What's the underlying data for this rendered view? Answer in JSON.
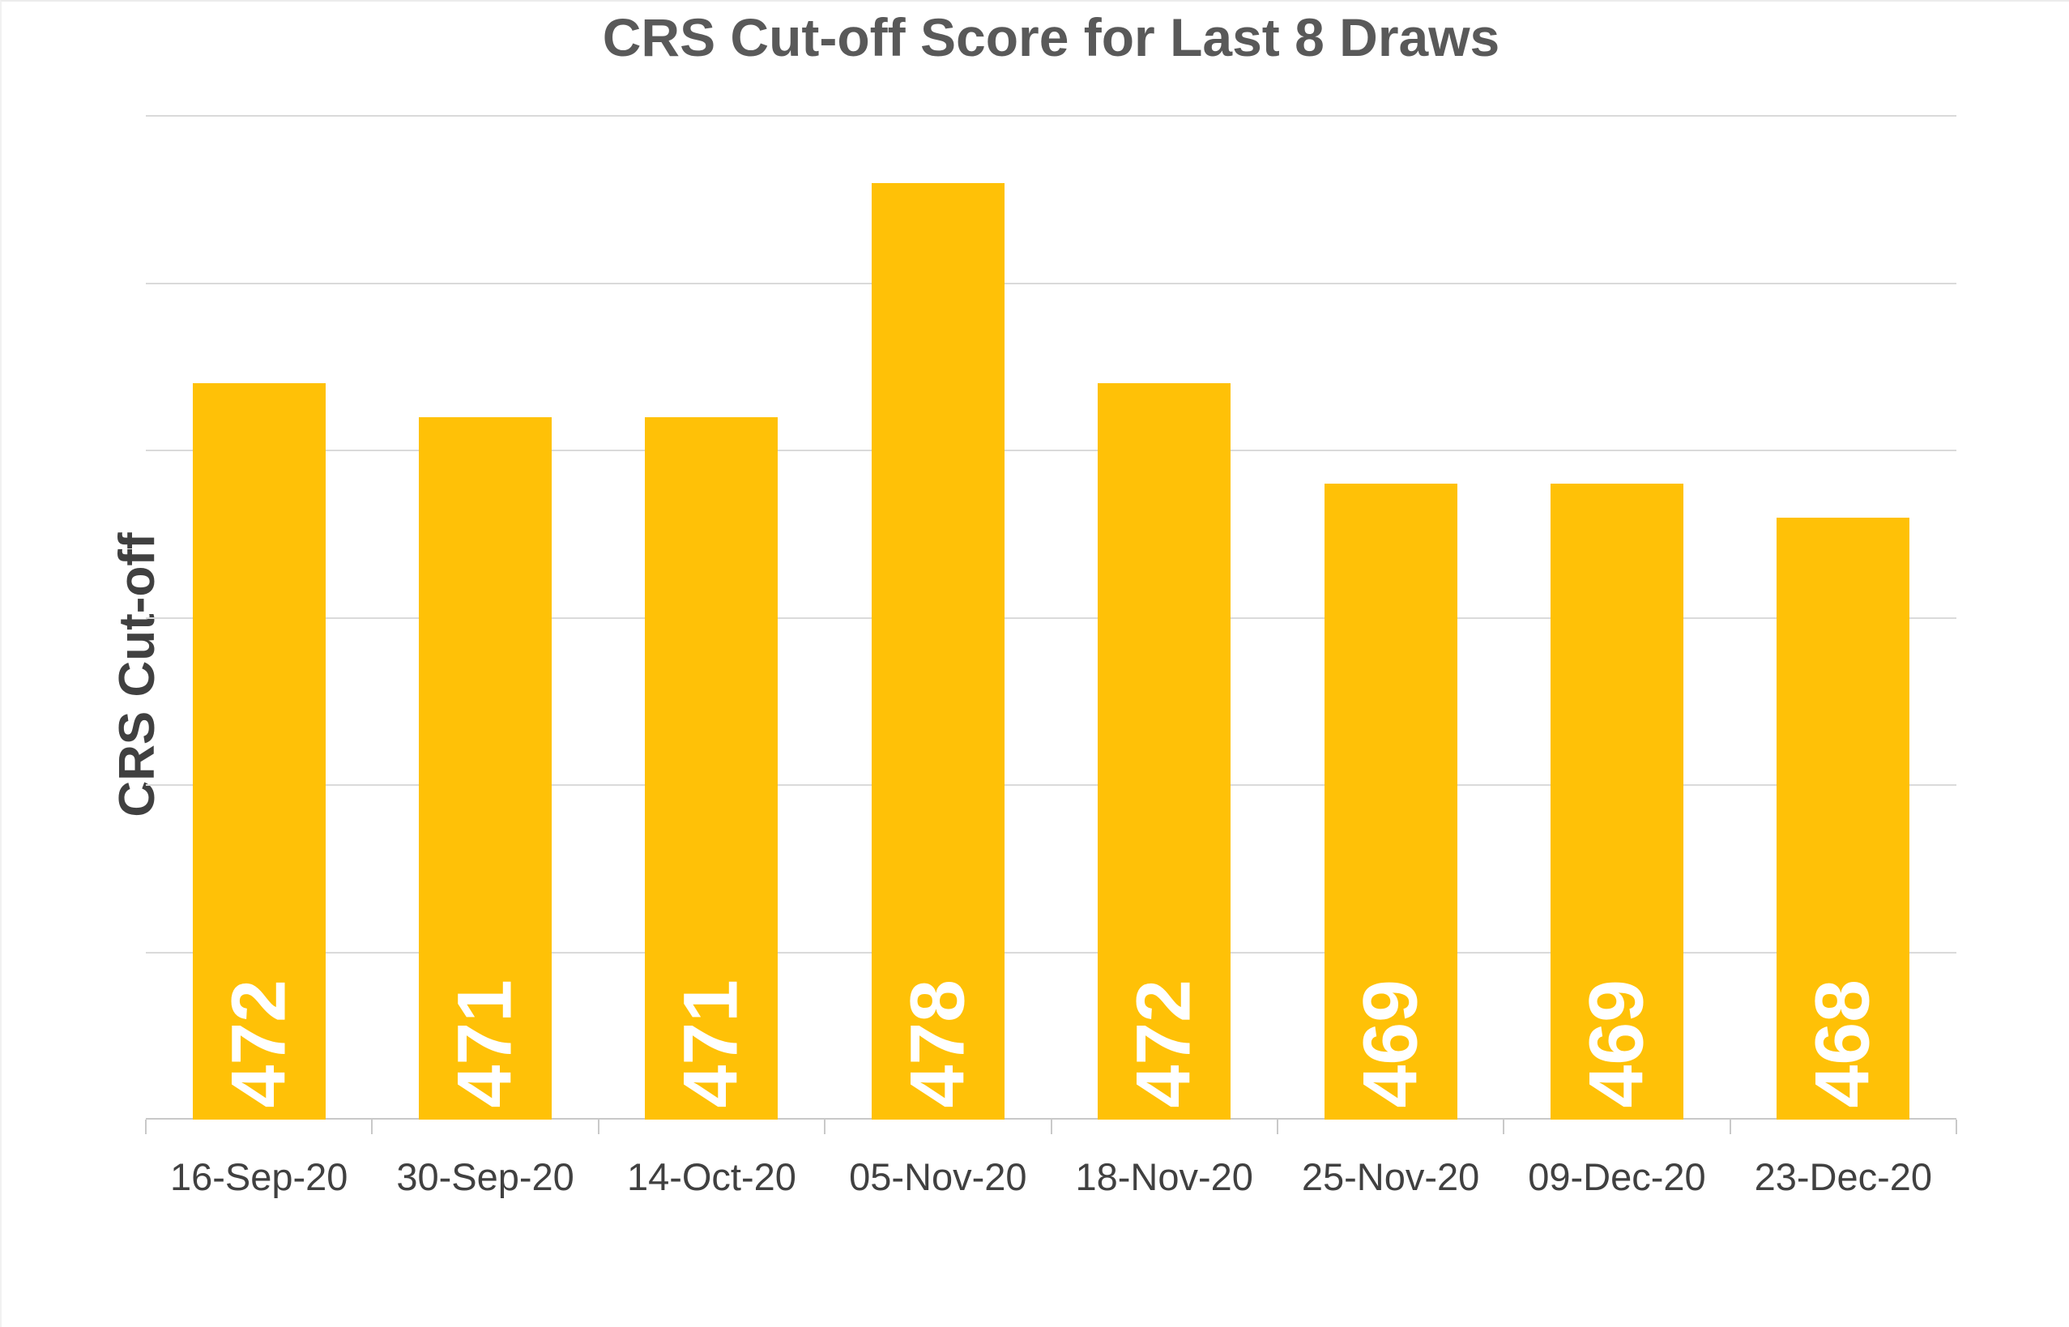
{
  "chart_data": {
    "type": "bar",
    "title": "CRS Cut-off Score for Last 8 Draws",
    "ylabel": "CRS Cut-off",
    "xlabel": "",
    "categories": [
      "16-Sep-20",
      "30-Sep-20",
      "14-Oct-20",
      "05-Nov-20",
      "18-Nov-20",
      "25-Nov-20",
      "09-Dec-20",
      "23-Dec-20"
    ],
    "values": [
      472,
      471,
      471,
      478,
      472,
      469,
      469,
      468
    ],
    "ylim": [
      450,
      480
    ],
    "gridline_step": 5,
    "grid": "horizontal",
    "y_tick_labels": "hidden",
    "legend": "none",
    "bar_labels": {
      "position": "inside-base",
      "rotation": "bottom-to-top",
      "color": "#FFFFFF"
    },
    "colors": {
      "bar": "#FFC107",
      "title": "#595959",
      "axis_text": "#404040",
      "gridline": "#DADADA",
      "axis_line": "#C9C9C9",
      "value_label": "#FFFFFF",
      "background": "#FFFFFF"
    }
  }
}
